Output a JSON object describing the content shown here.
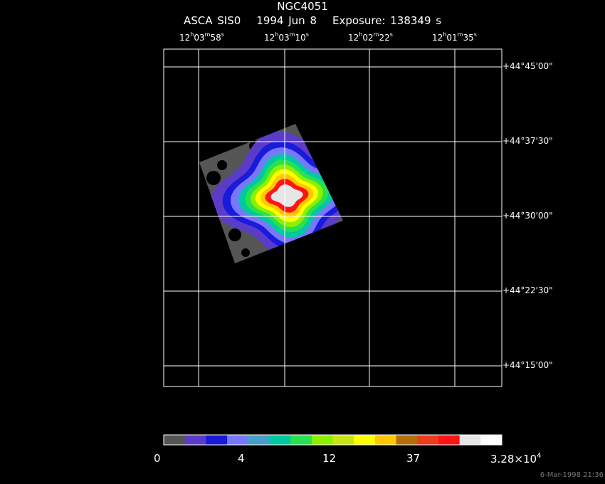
{
  "title": "NGC4051",
  "subtitle": {
    "instrument": "ASCA SIS0",
    "date": "1994 Jun  8",
    "exposure": "Exposure: 138349 s"
  },
  "chart_data": {
    "type": "heatmap",
    "title": "NGC4051",
    "ra_ticks": [
      {
        "h": "12",
        "m": "03",
        "s": "58"
      },
      {
        "h": "12",
        "m": "03",
        "s": "10"
      },
      {
        "h": "12",
        "m": "02",
        "s": "22"
      },
      {
        "h": "12",
        "m": "01",
        "s": "35"
      }
    ],
    "dec_ticks": [
      "+44°45'00\"",
      "+44°37'30\"",
      "+44°30'00\"",
      "+44°22'30\"",
      "+44°15'00\""
    ],
    "grid": true,
    "colorbar": {
      "colors": [
        "#555555",
        "#5a3cc8",
        "#1a1adc",
        "#7878ff",
        "#46a0c8",
        "#00c8a0",
        "#28e050",
        "#8cf000",
        "#c8e614",
        "#ffff00",
        "#ffc800",
        "#b46e0a",
        "#f03c1e",
        "#ff1414",
        "#e6e6e6",
        "#ffffff"
      ],
      "tick_labels": [
        "0",
        "4",
        "12",
        "37",
        "3.28×10",
        "4"
      ]
    }
  },
  "footer": {
    "timestamp": "6-Mar-1998 21:36"
  }
}
